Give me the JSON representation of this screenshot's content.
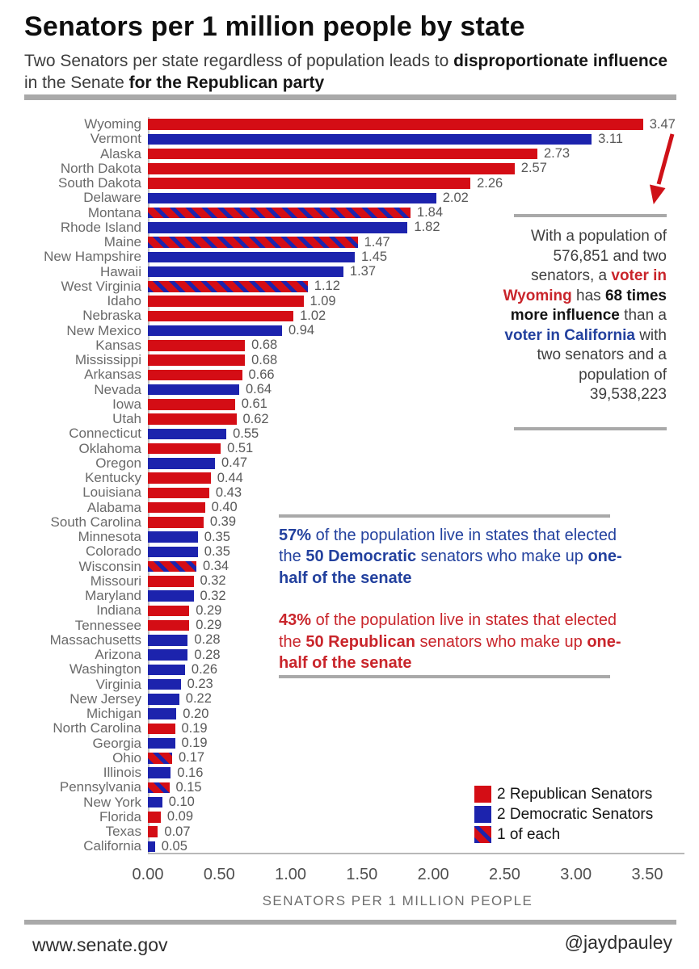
{
  "header": {
    "title": "Senators per 1 million people by state",
    "subtitle_part1": "Two Senators per state regardless of population leads to ",
    "subtitle_bold1": "disproportionate influence",
    "subtitle_part2": " in the Senate ",
    "subtitle_bold2": "for the Republican party"
  },
  "colors": {
    "republican_bar": "#d40d15",
    "democratic_bar": "#1c23ad",
    "republican_text": "#c9252b",
    "democratic_text": "#23419e",
    "rule_gray": "#a9a9a9"
  },
  "chart_data": {
    "type": "bar",
    "orientation": "horizontal",
    "title": "Senators per 1 million people by state",
    "xlabel": "SENATORS PER 1 MILLION PEOPLE",
    "xlim": [
      0,
      3.5
    ],
    "x_ticks": [
      "0.00",
      "0.50",
      "1.00",
      "1.50",
      "2.00",
      "2.50",
      "3.00",
      "3.50"
    ],
    "grid": false,
    "legend_position": "bottom-right",
    "legend": [
      {
        "party": "republican",
        "label": "2 Republican Senators"
      },
      {
        "party": "democratic",
        "label": "2 Democratic Senators"
      },
      {
        "party": "split",
        "label": "1 of each"
      }
    ],
    "states": [
      {
        "name": "Wyoming",
        "value": 3.47,
        "party": "republican"
      },
      {
        "name": "Vermont",
        "value": 3.11,
        "party": "democratic"
      },
      {
        "name": "Alaska",
        "value": 2.73,
        "party": "republican"
      },
      {
        "name": "North Dakota",
        "value": 2.57,
        "party": "republican"
      },
      {
        "name": "South Dakota",
        "value": 2.26,
        "party": "republican"
      },
      {
        "name": "Delaware",
        "value": 2.02,
        "party": "democratic"
      },
      {
        "name": "Montana",
        "value": 1.84,
        "party": "split"
      },
      {
        "name": "Rhode Island",
        "value": 1.82,
        "party": "democratic"
      },
      {
        "name": "Maine",
        "value": 1.47,
        "party": "split"
      },
      {
        "name": "New Hampshire",
        "value": 1.45,
        "party": "democratic"
      },
      {
        "name": "Hawaii",
        "value": 1.37,
        "party": "democratic"
      },
      {
        "name": "West Virginia",
        "value": 1.12,
        "party": "split"
      },
      {
        "name": "Idaho",
        "value": 1.09,
        "party": "republican"
      },
      {
        "name": "Nebraska",
        "value": 1.02,
        "party": "republican"
      },
      {
        "name": "New Mexico",
        "value": 0.94,
        "party": "democratic"
      },
      {
        "name": "Kansas",
        "value": 0.68,
        "party": "republican"
      },
      {
        "name": "Mississippi",
        "value": 0.68,
        "party": "republican"
      },
      {
        "name": "Arkansas",
        "value": 0.66,
        "party": "republican"
      },
      {
        "name": "Nevada",
        "value": 0.64,
        "party": "democratic"
      },
      {
        "name": "Iowa",
        "value": 0.61,
        "party": "republican"
      },
      {
        "name": "Utah",
        "value": 0.62,
        "party": "republican"
      },
      {
        "name": "Connecticut",
        "value": 0.55,
        "party": "democratic"
      },
      {
        "name": "Oklahoma",
        "value": 0.51,
        "party": "republican"
      },
      {
        "name": "Oregon",
        "value": 0.47,
        "party": "democratic"
      },
      {
        "name": "Kentucky",
        "value": 0.44,
        "party": "republican"
      },
      {
        "name": "Louisiana",
        "value": 0.43,
        "party": "republican"
      },
      {
        "name": "Alabama",
        "value": 0.4,
        "party": "republican"
      },
      {
        "name": "South Carolina",
        "value": 0.39,
        "party": "republican"
      },
      {
        "name": "Minnesota",
        "value": 0.35,
        "party": "democratic"
      },
      {
        "name": "Colorado",
        "value": 0.35,
        "party": "democratic"
      },
      {
        "name": "Wisconsin",
        "value": 0.34,
        "party": "split"
      },
      {
        "name": "Missouri",
        "value": 0.32,
        "party": "republican"
      },
      {
        "name": "Maryland",
        "value": 0.32,
        "party": "democratic"
      },
      {
        "name": "Indiana",
        "value": 0.29,
        "party": "republican"
      },
      {
        "name": "Tennessee",
        "value": 0.29,
        "party": "republican"
      },
      {
        "name": "Massachusetts",
        "value": 0.28,
        "party": "democratic"
      },
      {
        "name": "Arizona",
        "value": 0.28,
        "party": "democratic"
      },
      {
        "name": "Washington",
        "value": 0.26,
        "party": "democratic"
      },
      {
        "name": "Virginia",
        "value": 0.23,
        "party": "democratic"
      },
      {
        "name": "New Jersey",
        "value": 0.22,
        "party": "democratic"
      },
      {
        "name": "Michigan",
        "value": 0.2,
        "party": "democratic"
      },
      {
        "name": "North Carolina",
        "value": 0.19,
        "party": "republican"
      },
      {
        "name": "Georgia",
        "value": 0.19,
        "party": "democratic"
      },
      {
        "name": "Ohio",
        "value": 0.17,
        "party": "split"
      },
      {
        "name": "Illinois",
        "value": 0.16,
        "party": "democratic"
      },
      {
        "name": "Pennsylvania",
        "value": 0.15,
        "party": "split"
      },
      {
        "name": "New York",
        "value": 0.1,
        "party": "democratic"
      },
      {
        "name": "Florida",
        "value": 0.09,
        "party": "republican"
      },
      {
        "name": "Texas",
        "value": 0.07,
        "party": "republican"
      },
      {
        "name": "California",
        "value": 0.05,
        "party": "democratic"
      }
    ]
  },
  "wyoming_note": {
    "t1": "With a population of 576,851 and two senators, a ",
    "b_red": "voter in Wyoming",
    "t2": " has ",
    "b_black": "68 times more influence",
    "t3": " than a ",
    "b_blue": "voter in California",
    "t4": " with two senators and a population of 39,538,223"
  },
  "majority_note": {
    "dem": {
      "pct": "57%",
      "t1": " of the population live in states that elected the ",
      "b1": "50 Democratic",
      "t2": " senators who make up ",
      "b2": "one-half of the senate"
    },
    "rep": {
      "pct": "43%",
      "t1": " of the population live in states that elected the ",
      "b1": "50 Republican",
      "t2": " senators who make up ",
      "b2": "one-half of the senate"
    }
  },
  "footer": {
    "left": "www.senate.gov",
    "right": "@jaydpauley"
  }
}
